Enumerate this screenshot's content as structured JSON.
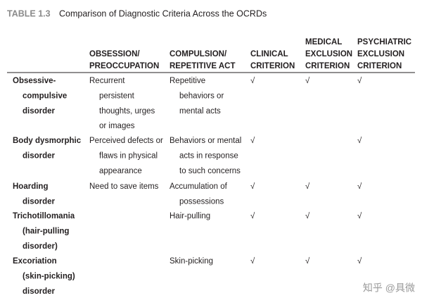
{
  "title": {
    "label": "TABLE 1.3",
    "text": "Comparison of Diagnostic Criteria Across the OCRDs"
  },
  "table": {
    "columns": [
      [],
      [
        "OBSESSION/",
        "PREOCCUPATION"
      ],
      [
        "COMPULSION/",
        "REPETITIVE ACT"
      ],
      [
        "CLINICAL",
        "CRITERION"
      ],
      [
        "MEDICAL",
        "EXCLUSION",
        "CRITERION"
      ],
      [
        "PSYCHIATRIC",
        "EXCLUSION",
        "CRITERION"
      ]
    ],
    "rows": [
      [
        [
          "Obsessive-",
          "compulsive",
          "disorder"
        ],
        [
          "Recurrent",
          "persistent",
          "thoughts, urges",
          "or images"
        ],
        [
          "Repetitive",
          "behaviors or",
          "mental acts"
        ],
        [
          "√"
        ],
        [
          "√"
        ],
        [
          "√"
        ]
      ],
      [
        [
          "Body dysmorphic",
          "disorder"
        ],
        [
          "Perceived defects or",
          "flaws in physical",
          "appearance"
        ],
        [
          "Behaviors or mental",
          "acts in response",
          "to such concerns"
        ],
        [
          "√"
        ],
        [],
        [
          "√"
        ]
      ],
      [
        [
          "Hoarding",
          "disorder"
        ],
        [
          "Need to save items"
        ],
        [
          "Accumulation of",
          "possessions"
        ],
        [
          "√"
        ],
        [
          "√"
        ],
        [
          "√"
        ]
      ],
      [
        [
          "Trichotillomania",
          "(hair-pulling",
          "disorder)"
        ],
        [],
        [
          "Hair-pulling"
        ],
        [
          "√"
        ],
        [
          "√"
        ],
        [
          "√"
        ]
      ],
      [
        [
          "Excoriation",
          "(skin-picking)",
          "disorder"
        ],
        [],
        [
          "Skin-picking"
        ],
        [
          "√"
        ],
        [
          "√"
        ],
        [
          "√"
        ]
      ]
    ]
  },
  "watermark": "知乎 @具微"
}
